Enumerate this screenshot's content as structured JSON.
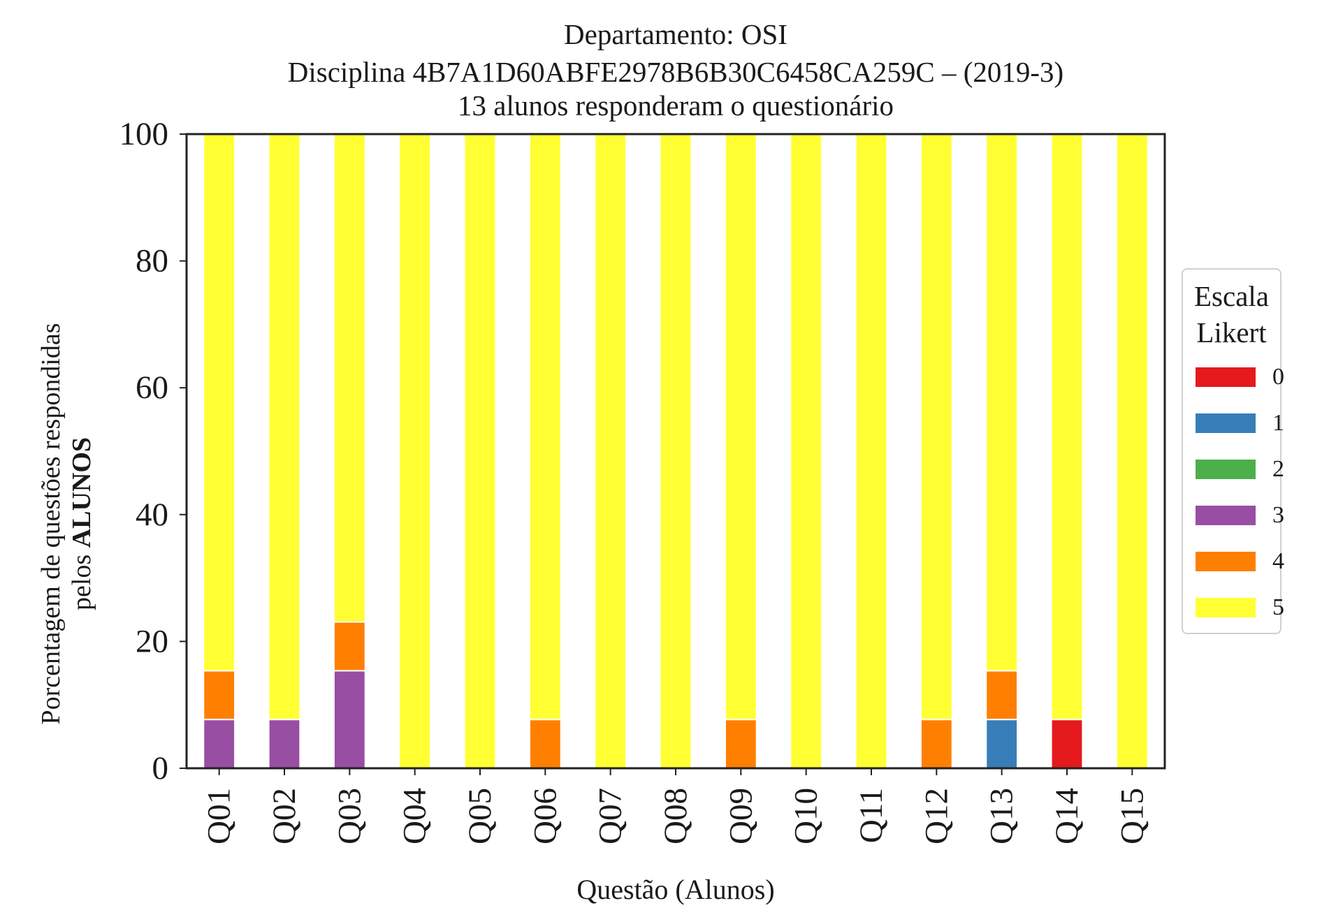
{
  "title": {
    "line1": "Departamento: OSI",
    "line2": "Disciplina 4B7A1D60ABFE2978B6B30C6458CA259C – (2019-3)",
    "line3": "13 alunos responderam o questionário"
  },
  "ylabel": {
    "line1": "Porcentagem de questões respondidas",
    "line2_prefix": "pelos ",
    "line2_bold": "ALUNOS"
  },
  "legend": {
    "title_line1": "Escala",
    "title_line2": "Likert"
  },
  "chart_data": {
    "type": "bar",
    "stacked": true,
    "title": "Departamento: OSI\nDisciplina 4B7A1D60ABFE2978B6B30C6458CA259C – (2019-3)\n13 alunos responderam o questionário",
    "xlabel": "Questão (Alunos)",
    "ylabel": "Porcentagem de questões respondidas pelos ALUNOS",
    "ylim": [
      0,
      100
    ],
    "yticks": [
      0,
      20,
      40,
      60,
      80,
      100
    ],
    "categories": [
      "Q01",
      "Q02",
      "Q03",
      "Q04",
      "Q05",
      "Q06",
      "Q07",
      "Q08",
      "Q09",
      "Q10",
      "Q11",
      "Q12",
      "Q13",
      "Q14",
      "Q15"
    ],
    "legend_position": "center-right",
    "grid": false,
    "series": [
      {
        "name": "0",
        "color": "#e41a1c",
        "values": [
          0,
          0,
          0,
          0,
          0,
          0,
          0,
          0,
          0,
          0,
          0,
          0,
          0,
          7.69,
          0
        ]
      },
      {
        "name": "1",
        "color": "#377eb8",
        "values": [
          0,
          0,
          0,
          0,
          0,
          0,
          0,
          0,
          0,
          0,
          0,
          0,
          7.69,
          0,
          0
        ]
      },
      {
        "name": "2",
        "color": "#4daf4a",
        "values": [
          0,
          0,
          0,
          0,
          0,
          0,
          0,
          0,
          0,
          0,
          0,
          0,
          0,
          0,
          0
        ]
      },
      {
        "name": "3",
        "color": "#984ea3",
        "values": [
          7.69,
          7.69,
          15.38,
          0,
          0,
          0,
          0,
          0,
          0,
          0,
          0,
          0,
          0,
          0,
          0
        ]
      },
      {
        "name": "4",
        "color": "#ff7f00",
        "values": [
          7.69,
          0,
          7.69,
          0,
          0,
          7.69,
          0,
          0,
          7.69,
          0,
          0,
          7.69,
          7.69,
          0,
          0
        ]
      },
      {
        "name": "5",
        "color": "#ffff33",
        "values": [
          84.62,
          92.31,
          76.92,
          100,
          100,
          92.31,
          100,
          100,
          92.31,
          100,
          100,
          92.31,
          84.62,
          92.31,
          100
        ]
      }
    ]
  }
}
